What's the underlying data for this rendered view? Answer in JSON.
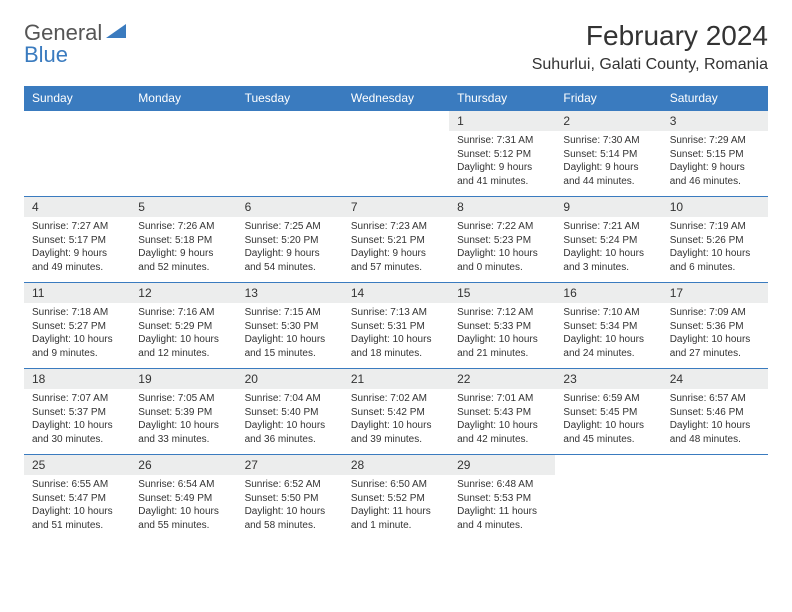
{
  "logo": {
    "text1": "General",
    "text2": "Blue"
  },
  "title": "February 2024",
  "location": "Suhurlui, Galati County, Romania",
  "colors": {
    "header_bg": "#3a7bbf",
    "header_text": "#ffffff",
    "daynum_bg": "#eceded",
    "border": "#3a7bbf",
    "text": "#333333",
    "logo_gray": "#555555",
    "logo_blue": "#3a7bbf"
  },
  "weekdays": [
    "Sunday",
    "Monday",
    "Tuesday",
    "Wednesday",
    "Thursday",
    "Friday",
    "Saturday"
  ],
  "weeks": [
    [
      null,
      null,
      null,
      null,
      {
        "n": "1",
        "sr": "Sunrise: 7:31 AM",
        "ss": "Sunset: 5:12 PM",
        "dl1": "Daylight: 9 hours",
        "dl2": "and 41 minutes."
      },
      {
        "n": "2",
        "sr": "Sunrise: 7:30 AM",
        "ss": "Sunset: 5:14 PM",
        "dl1": "Daylight: 9 hours",
        "dl2": "and 44 minutes."
      },
      {
        "n": "3",
        "sr": "Sunrise: 7:29 AM",
        "ss": "Sunset: 5:15 PM",
        "dl1": "Daylight: 9 hours",
        "dl2": "and 46 minutes."
      }
    ],
    [
      {
        "n": "4",
        "sr": "Sunrise: 7:27 AM",
        "ss": "Sunset: 5:17 PM",
        "dl1": "Daylight: 9 hours",
        "dl2": "and 49 minutes."
      },
      {
        "n": "5",
        "sr": "Sunrise: 7:26 AM",
        "ss": "Sunset: 5:18 PM",
        "dl1": "Daylight: 9 hours",
        "dl2": "and 52 minutes."
      },
      {
        "n": "6",
        "sr": "Sunrise: 7:25 AM",
        "ss": "Sunset: 5:20 PM",
        "dl1": "Daylight: 9 hours",
        "dl2": "and 54 minutes."
      },
      {
        "n": "7",
        "sr": "Sunrise: 7:23 AM",
        "ss": "Sunset: 5:21 PM",
        "dl1": "Daylight: 9 hours",
        "dl2": "and 57 minutes."
      },
      {
        "n": "8",
        "sr": "Sunrise: 7:22 AM",
        "ss": "Sunset: 5:23 PM",
        "dl1": "Daylight: 10 hours",
        "dl2": "and 0 minutes."
      },
      {
        "n": "9",
        "sr": "Sunrise: 7:21 AM",
        "ss": "Sunset: 5:24 PM",
        "dl1": "Daylight: 10 hours",
        "dl2": "and 3 minutes."
      },
      {
        "n": "10",
        "sr": "Sunrise: 7:19 AM",
        "ss": "Sunset: 5:26 PM",
        "dl1": "Daylight: 10 hours",
        "dl2": "and 6 minutes."
      }
    ],
    [
      {
        "n": "11",
        "sr": "Sunrise: 7:18 AM",
        "ss": "Sunset: 5:27 PM",
        "dl1": "Daylight: 10 hours",
        "dl2": "and 9 minutes."
      },
      {
        "n": "12",
        "sr": "Sunrise: 7:16 AM",
        "ss": "Sunset: 5:29 PM",
        "dl1": "Daylight: 10 hours",
        "dl2": "and 12 minutes."
      },
      {
        "n": "13",
        "sr": "Sunrise: 7:15 AM",
        "ss": "Sunset: 5:30 PM",
        "dl1": "Daylight: 10 hours",
        "dl2": "and 15 minutes."
      },
      {
        "n": "14",
        "sr": "Sunrise: 7:13 AM",
        "ss": "Sunset: 5:31 PM",
        "dl1": "Daylight: 10 hours",
        "dl2": "and 18 minutes."
      },
      {
        "n": "15",
        "sr": "Sunrise: 7:12 AM",
        "ss": "Sunset: 5:33 PM",
        "dl1": "Daylight: 10 hours",
        "dl2": "and 21 minutes."
      },
      {
        "n": "16",
        "sr": "Sunrise: 7:10 AM",
        "ss": "Sunset: 5:34 PM",
        "dl1": "Daylight: 10 hours",
        "dl2": "and 24 minutes."
      },
      {
        "n": "17",
        "sr": "Sunrise: 7:09 AM",
        "ss": "Sunset: 5:36 PM",
        "dl1": "Daylight: 10 hours",
        "dl2": "and 27 minutes."
      }
    ],
    [
      {
        "n": "18",
        "sr": "Sunrise: 7:07 AM",
        "ss": "Sunset: 5:37 PM",
        "dl1": "Daylight: 10 hours",
        "dl2": "and 30 minutes."
      },
      {
        "n": "19",
        "sr": "Sunrise: 7:05 AM",
        "ss": "Sunset: 5:39 PM",
        "dl1": "Daylight: 10 hours",
        "dl2": "and 33 minutes."
      },
      {
        "n": "20",
        "sr": "Sunrise: 7:04 AM",
        "ss": "Sunset: 5:40 PM",
        "dl1": "Daylight: 10 hours",
        "dl2": "and 36 minutes."
      },
      {
        "n": "21",
        "sr": "Sunrise: 7:02 AM",
        "ss": "Sunset: 5:42 PM",
        "dl1": "Daylight: 10 hours",
        "dl2": "and 39 minutes."
      },
      {
        "n": "22",
        "sr": "Sunrise: 7:01 AM",
        "ss": "Sunset: 5:43 PM",
        "dl1": "Daylight: 10 hours",
        "dl2": "and 42 minutes."
      },
      {
        "n": "23",
        "sr": "Sunrise: 6:59 AM",
        "ss": "Sunset: 5:45 PM",
        "dl1": "Daylight: 10 hours",
        "dl2": "and 45 minutes."
      },
      {
        "n": "24",
        "sr": "Sunrise: 6:57 AM",
        "ss": "Sunset: 5:46 PM",
        "dl1": "Daylight: 10 hours",
        "dl2": "and 48 minutes."
      }
    ],
    [
      {
        "n": "25",
        "sr": "Sunrise: 6:55 AM",
        "ss": "Sunset: 5:47 PM",
        "dl1": "Daylight: 10 hours",
        "dl2": "and 51 minutes."
      },
      {
        "n": "26",
        "sr": "Sunrise: 6:54 AM",
        "ss": "Sunset: 5:49 PM",
        "dl1": "Daylight: 10 hours",
        "dl2": "and 55 minutes."
      },
      {
        "n": "27",
        "sr": "Sunrise: 6:52 AM",
        "ss": "Sunset: 5:50 PM",
        "dl1": "Daylight: 10 hours",
        "dl2": "and 58 minutes."
      },
      {
        "n": "28",
        "sr": "Sunrise: 6:50 AM",
        "ss": "Sunset: 5:52 PM",
        "dl1": "Daylight: 11 hours",
        "dl2": "and 1 minute."
      },
      {
        "n": "29",
        "sr": "Sunrise: 6:48 AM",
        "ss": "Sunset: 5:53 PM",
        "dl1": "Daylight: 11 hours",
        "dl2": "and 4 minutes."
      },
      null,
      null
    ]
  ]
}
